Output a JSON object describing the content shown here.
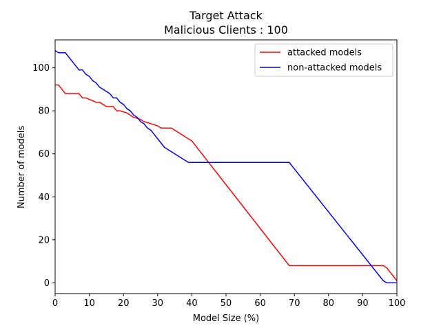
{
  "chart_data": {
    "type": "line",
    "title": "Target Attack",
    "subtitle": "Malicious Clients : 100",
    "xlabel": "Model Size (%)",
    "ylabel": "Number of models",
    "xlim": [
      0,
      100
    ],
    "ylim": [
      -5,
      113
    ],
    "xticks": [
      0,
      10,
      20,
      30,
      40,
      50,
      60,
      70,
      80,
      90,
      100
    ],
    "yticks": [
      0,
      20,
      40,
      60,
      80,
      100
    ],
    "grid": false,
    "legend_position": "top-right",
    "series": [
      {
        "name": "attacked models",
        "color": "#ff0000",
        "x": [
          0,
          1,
          3,
          7,
          8,
          9,
          12,
          13,
          14,
          15,
          17,
          18,
          19,
          21,
          22,
          23,
          25,
          26,
          28,
          30,
          31,
          33,
          34,
          35,
          36,
          37,
          38,
          39,
          40,
          68.5,
          96,
          97,
          100
        ],
        "y": [
          92,
          92,
          88,
          88,
          86,
          86,
          84,
          84,
          83,
          82,
          82,
          80,
          80,
          79,
          78,
          77,
          76,
          75,
          74,
          73,
          72,
          72,
          72,
          71,
          70,
          69,
          68,
          67,
          66,
          8,
          8,
          7,
          1
        ]
      },
      {
        "name": "non-attacked models",
        "color": "#0000ff",
        "x": [
          0,
          1,
          3,
          7,
          8,
          9,
          10,
          11,
          12,
          13,
          14,
          15,
          16,
          17,
          18,
          19,
          20,
          21,
          22,
          23,
          24,
          25,
          26,
          27,
          28,
          29,
          30,
          31,
          32,
          33,
          34,
          35,
          36,
          37,
          38,
          39,
          40,
          68.5,
          96,
          97,
          100
        ],
        "y": [
          108,
          107,
          107,
          99,
          99,
          97,
          96,
          94,
          93,
          91,
          90,
          89,
          88,
          86,
          86,
          84,
          83,
          81,
          80,
          78,
          77,
          75,
          74,
          72,
          71,
          69,
          67,
          65,
          63,
          62,
          61,
          60,
          59,
          58,
          57,
          56,
          56,
          56,
          1,
          0,
          0
        ]
      }
    ]
  }
}
